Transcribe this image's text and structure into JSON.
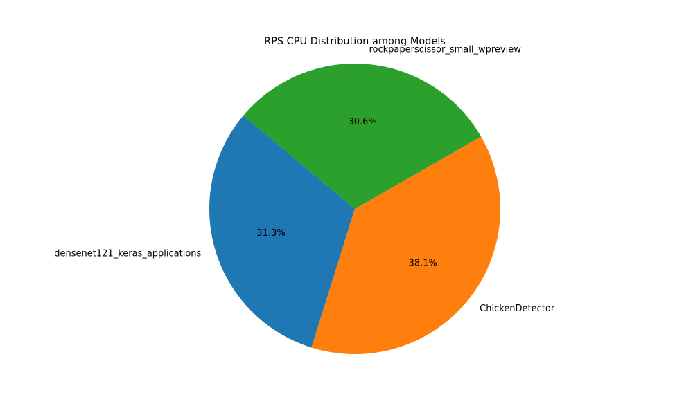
{
  "chart_data": {
    "type": "pie",
    "title": "RPS CPU Distribution among Models",
    "labels": [
      "densenet121_keras_applications",
      "ChickenDetector",
      "rockpaperscissor_small_wpreview"
    ],
    "values": [
      31.3,
      38.1,
      30.6
    ],
    "value_labels": [
      "31.3%",
      "38.1%",
      "30.6%"
    ],
    "colors": [
      "#1f77b4",
      "#ff7f0e",
      "#2ca02c"
    ],
    "start_angle_deg": 140,
    "direction": "counterclockwise",
    "legend": "none"
  }
}
